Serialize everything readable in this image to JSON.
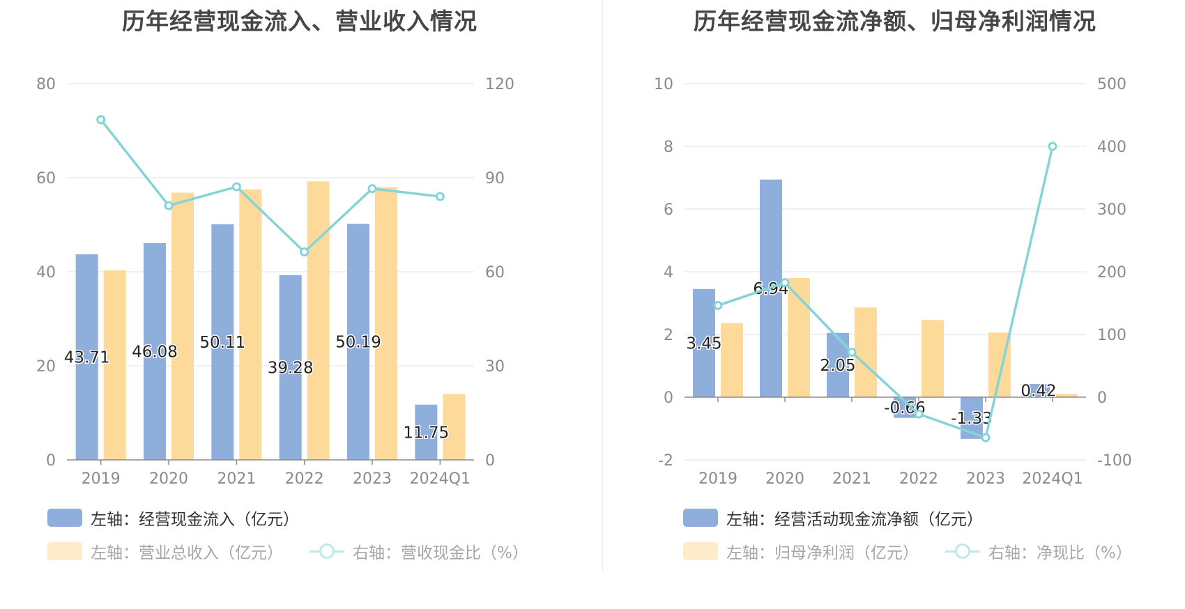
{
  "colors": {
    "bar_primary": "#8eaedc",
    "bar_secondary": "#fdd99a",
    "line": "#85d4d8",
    "axis_text": "#8a8a8a",
    "grid": "#dde1ee",
    "title": "#464646",
    "legend_active_text": "#333333",
    "legend_inactive_text": "#a6a6a6",
    "legend_inactive_bar": "#fdebc9",
    "legend_inactive_line": "#bfe8ea"
  },
  "chart_data": [
    {
      "type": "bar",
      "title": "历年经营现金流入、营业收入情况",
      "categories": [
        "2019",
        "2020",
        "2021",
        "2022",
        "2023",
        "2024Q1"
      ],
      "left_axis": {
        "ylim": [
          0,
          80
        ],
        "ticks": [
          "0",
          "20",
          "40",
          "60",
          "80"
        ]
      },
      "right_axis": {
        "ylim": [
          0,
          120
        ],
        "ticks": [
          "0",
          "30",
          "60",
          "90",
          "120"
        ]
      },
      "grid": true,
      "legend_position": "bottom",
      "series": [
        {
          "name": "左轴：经营现金流入（亿元）",
          "type": "bar",
          "axis": "left",
          "values": [
            43.71,
            46.08,
            50.11,
            39.28,
            50.19,
            11.75
          ],
          "labels": [
            "43.71",
            "46.08",
            "50.11",
            "39.28",
            "50.19",
            "11.75"
          ]
        },
        {
          "name": "左轴：营业总收入（亿元）",
          "type": "bar",
          "axis": "left",
          "values": [
            40.3,
            56.8,
            57.5,
            59.2,
            58.0,
            14.0
          ]
        },
        {
          "name": "右轴：营收现金比（%）",
          "type": "line",
          "axis": "right",
          "values": [
            108.5,
            81.1,
            87.1,
            66.3,
            86.5,
            84.0
          ]
        }
      ]
    },
    {
      "type": "bar",
      "title": "历年经营现金流净额、归母净利润情况",
      "categories": [
        "2019",
        "2020",
        "2021",
        "2022",
        "2023",
        "2024Q1"
      ],
      "left_axis": {
        "ylim": [
          -2,
          10
        ],
        "ticks": [
          "-2",
          "0",
          "2",
          "4",
          "6",
          "8",
          "10"
        ]
      },
      "right_axis": {
        "ylim": [
          -100,
          500
        ],
        "ticks": [
          "-100",
          "0",
          "100",
          "200",
          "300",
          "400",
          "500"
        ]
      },
      "grid": true,
      "legend_position": "bottom",
      "series": [
        {
          "name": "左轴：经营活动现金流净额（亿元）",
          "type": "bar",
          "axis": "left",
          "values": [
            3.45,
            6.94,
            2.05,
            -0.66,
            -1.33,
            0.42
          ],
          "labels": [
            "3.45",
            "6.94",
            "2.05",
            "-0.66",
            "-1.33",
            "0.42"
          ]
        },
        {
          "name": "左轴：归母净利润（亿元）",
          "type": "bar",
          "axis": "left",
          "values": [
            2.36,
            3.8,
            2.86,
            2.46,
            2.06,
            0.1
          ]
        },
        {
          "name": "右轴：净现比（%）",
          "type": "line",
          "axis": "right",
          "values": [
            146.2,
            182.6,
            71.7,
            -26.8,
            -64.6,
            400.0
          ]
        }
      ]
    }
  ]
}
